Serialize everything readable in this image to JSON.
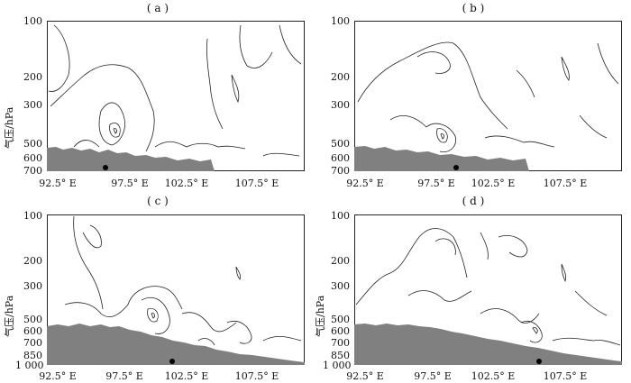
{
  "figure": {
    "panels": [
      {
        "label": "( a )",
        "ylabel": "气压/hPa",
        "yticks": [
          "100",
          "200",
          "300",
          "500",
          "600",
          "700"
        ],
        "xticks": [
          "92.5° E",
          "97.5° E",
          "102.5° E",
          "107.5° E"
        ]
      },
      {
        "label": "( b )",
        "ylabel": "",
        "yticks": [
          "100",
          "200",
          "300",
          "500",
          "600",
          "700"
        ],
        "xticks": [
          "92.5° E",
          "97.5° E",
          "102.5° E",
          "107.5° E"
        ]
      },
      {
        "label": "( c )",
        "ylabel": "气压/hPa",
        "yticks": [
          "100",
          "200",
          "300",
          "500",
          "600",
          "700",
          "850",
          "1 000"
        ],
        "xticks": [
          "92.5° E",
          "97.5° E",
          "102.5° E",
          "107.5° E"
        ]
      },
      {
        "label": "( d )",
        "ylabel": "气压/hPa",
        "yticks": [
          "100",
          "200",
          "300",
          "500",
          "600",
          "700",
          "850",
          "1 000"
        ],
        "xticks": [
          "92.5° E",
          "97.5° E",
          "102.5° E",
          "107.5° E"
        ]
      }
    ],
    "colors": {
      "terrain": "#808080",
      "contour": "#222222",
      "marker": "#000000"
    }
  }
}
